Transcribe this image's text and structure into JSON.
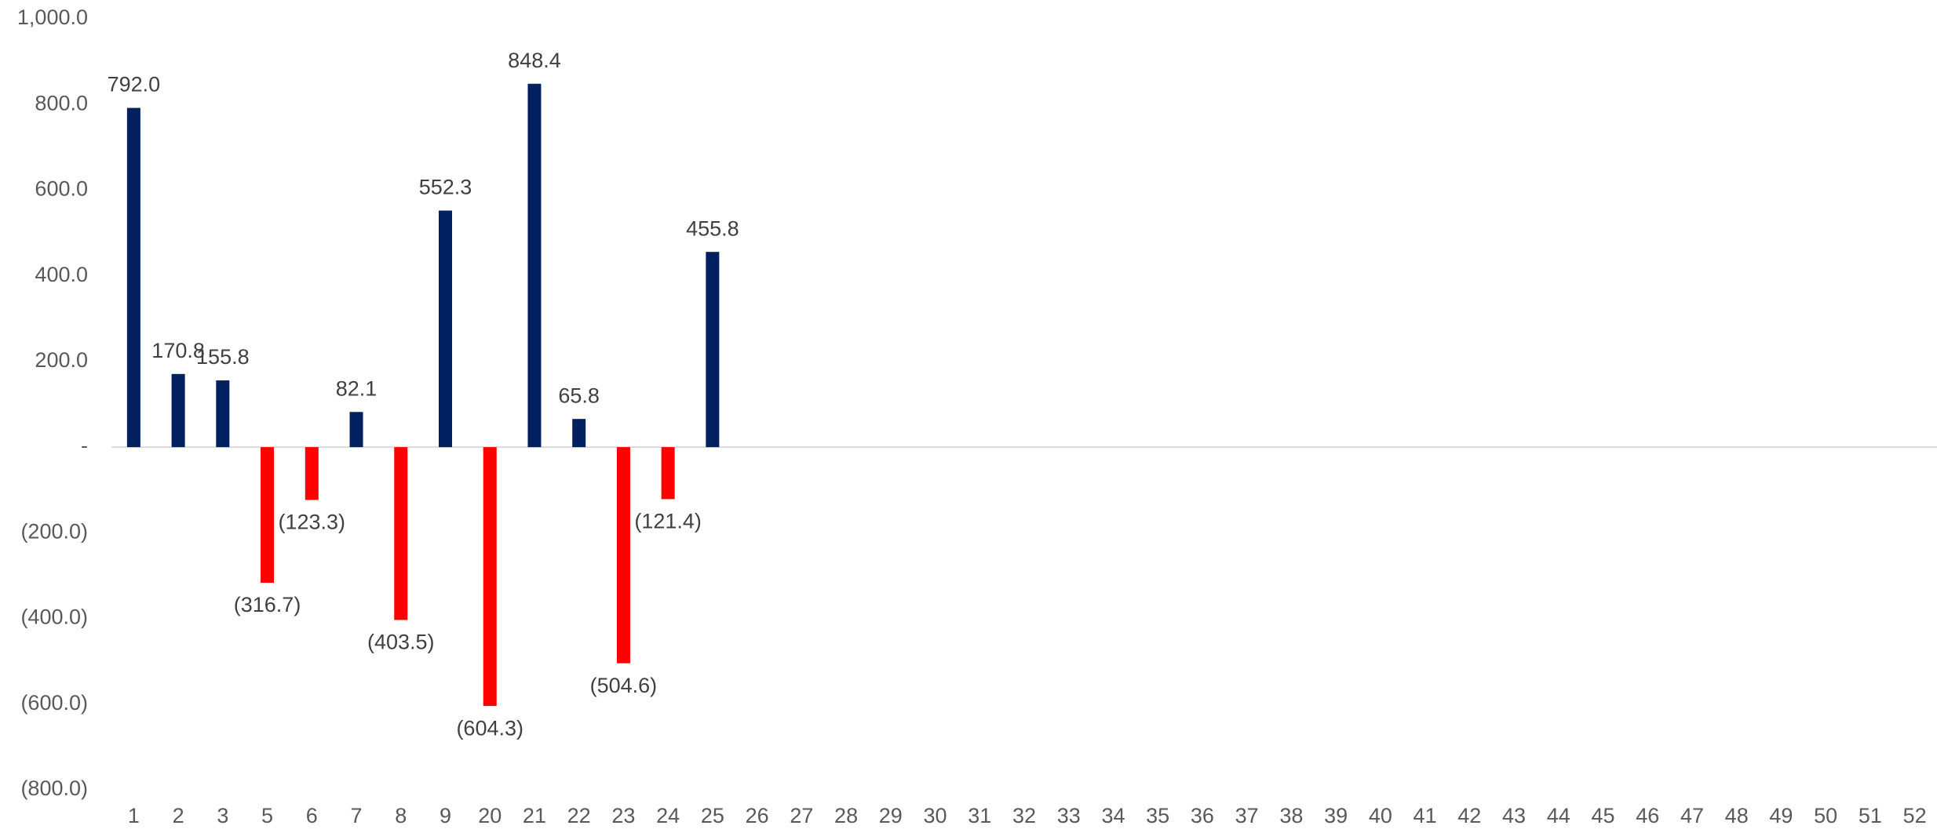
{
  "chart_data": {
    "type": "bar",
    "categories": [
      "1",
      "2",
      "3",
      "5",
      "6",
      "7",
      "8",
      "9",
      "20",
      "21",
      "22",
      "23",
      "24",
      "25",
      "26",
      "27",
      "28",
      "29",
      "30",
      "31",
      "32",
      "33",
      "34",
      "35",
      "36",
      "37",
      "38",
      "39",
      "40",
      "41",
      "42",
      "43",
      "44",
      "45",
      "46",
      "47",
      "48",
      "49",
      "50",
      "51",
      "52"
    ],
    "values": [
      792.0,
      170.8,
      155.8,
      -316.7,
      -123.3,
      82.1,
      -403.5,
      552.3,
      -604.3,
      848.4,
      65.8,
      -504.6,
      -121.4,
      455.8,
      null,
      null,
      null,
      null,
      null,
      null,
      null,
      null,
      null,
      null,
      null,
      null,
      null,
      null,
      null,
      null,
      null,
      null,
      null,
      null,
      null,
      null,
      null,
      null,
      null,
      null,
      null
    ],
    "value_labels": [
      "792.0",
      "170.8",
      "155.8",
      "(316.7)",
      "(123.3)",
      "82.1",
      "(403.5)",
      "552.3",
      "(604.3)",
      "848.4",
      "65.8",
      "(504.6)",
      "(121.4)",
      "455.8",
      null,
      null,
      null,
      null,
      null,
      null,
      null,
      null,
      null,
      null,
      null,
      null,
      null,
      null,
      null,
      null,
      null,
      null,
      null,
      null,
      null,
      null,
      null,
      null,
      null,
      null,
      null
    ],
    "color": "#002060",
    "negative_color": "#ff0000",
    "ylim": [
      -800,
      1000
    ],
    "yticks": [
      {
        "value": 1000,
        "label": "1,000.0"
      },
      {
        "value": 800,
        "label": "800.0"
      },
      {
        "value": 600,
        "label": "600.0"
      },
      {
        "value": 400,
        "label": "400.0"
      },
      {
        "value": 200,
        "label": "200.0"
      },
      {
        "value": 0,
        "label": "-"
      },
      {
        "value": -200,
        "label": "(200.0)"
      },
      {
        "value": -400,
        "label": "(400.0)"
      },
      {
        "value": -600,
        "label": "(600.0)"
      },
      {
        "value": -800,
        "label": "(800.0)"
      }
    ],
    "grid": false
  }
}
